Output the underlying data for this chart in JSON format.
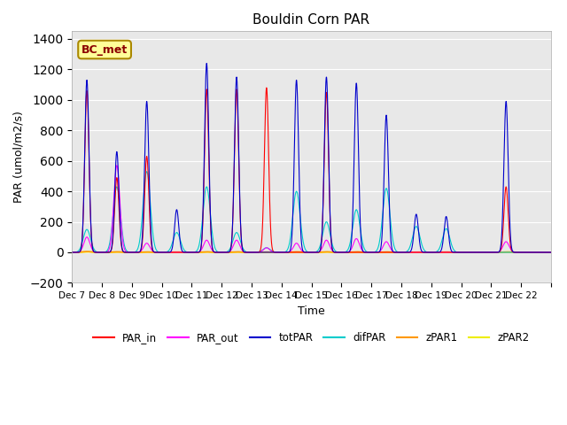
{
  "title": "Bouldin Corn PAR",
  "xlabel": "Time",
  "ylabel": "PAR (umol/m2/s)",
  "ylim": [
    -200,
    1450
  ],
  "background_color": "#e8e8e8",
  "legend_label": "BC_met",
  "legend_label_color": "#8B0000",
  "legend_label_bg": "#ffff99",
  "xtick_labels": [
    "Dec 7",
    "Dec 8",
    "Dec 9",
    "Dec 10",
    "Dec 11",
    "Dec 12",
    "Dec 13",
    "Dec 14",
    "Dec 15",
    "Dec 16",
    "Dec 17",
    "Dec 18",
    "Dec 19",
    "Dec 20",
    "Dec 21",
    "Dec 22"
  ],
  "series": {
    "PAR_in": {
      "color": "#ff0000",
      "lw": 0.8
    },
    "PAR_out": {
      "color": "#ff00ff",
      "lw": 0.8
    },
    "totPAR": {
      "color": "#0000cc",
      "lw": 0.8
    },
    "difPAR": {
      "color": "#00cccc",
      "lw": 0.8
    },
    "zPAR1": {
      "color": "#ff9900",
      "lw": 1.2
    },
    "zPAR2": {
      "color": "#eeee00",
      "lw": 1.2
    }
  },
  "custom_peaks": [
    [
      0,
      1130,
      1060,
      100,
      150,
      5,
      3
    ],
    [
      1,
      660,
      490,
      570,
      430,
      3,
      2
    ],
    [
      2,
      990,
      630,
      60,
      530,
      2,
      2
    ],
    [
      3,
      280,
      0,
      0,
      130,
      2,
      1
    ],
    [
      4,
      1240,
      1070,
      80,
      430,
      3,
      2
    ],
    [
      5,
      1150,
      1070,
      80,
      130,
      3,
      2
    ],
    [
      6,
      0,
      1080,
      30,
      30,
      2,
      1
    ],
    [
      7,
      1130,
      0,
      60,
      400,
      3,
      2
    ],
    [
      8,
      1150,
      1050,
      80,
      200,
      3,
      2
    ],
    [
      9,
      1110,
      0,
      90,
      280,
      3,
      2
    ],
    [
      10,
      900,
      0,
      70,
      420,
      2,
      2
    ],
    [
      11,
      250,
      0,
      0,
      170,
      2,
      1
    ],
    [
      12,
      235,
      0,
      0,
      155,
      2,
      1
    ],
    [
      13,
      0,
      0,
      0,
      0,
      1,
      1
    ],
    [
      14,
      990,
      430,
      70,
      0,
      2,
      2
    ],
    [
      15,
      0,
      0,
      0,
      0,
      1,
      0
    ]
  ]
}
